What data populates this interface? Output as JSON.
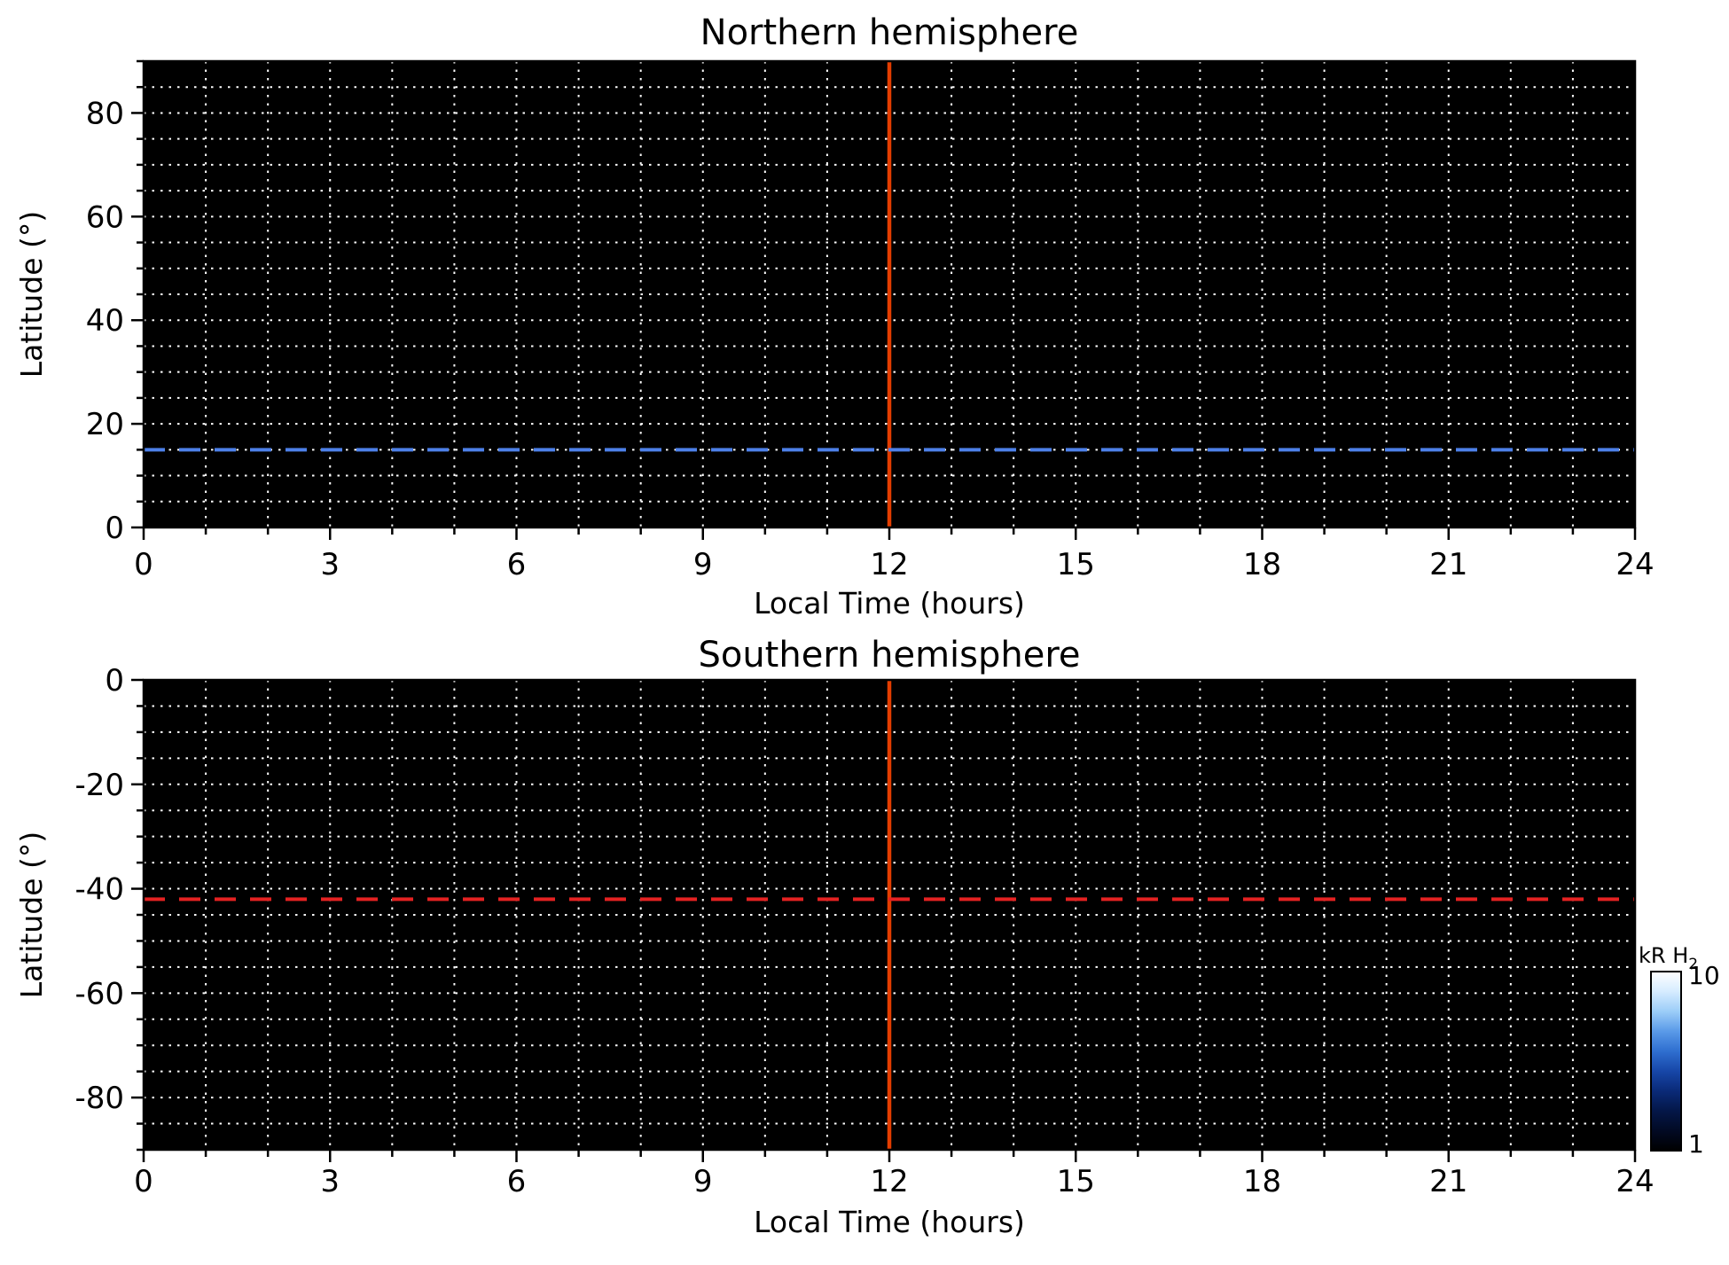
{
  "figure": {
    "background_color": "#ffffff"
  },
  "chart_data": [
    {
      "type": "heatmap",
      "title": "Northern hemisphere",
      "xlabel": "Local Time (hours)",
      "ylabel": "Latitude (°)",
      "xlim": [
        0,
        24
      ],
      "ylim": [
        0,
        90
      ],
      "xticks": [
        0,
        3,
        6,
        9,
        12,
        15,
        18,
        21,
        24
      ],
      "yticks": [
        0,
        20,
        40,
        60,
        80
      ],
      "x_minor_step": 1,
      "y_minor_step": 5,
      "grid": {
        "on": true,
        "x_step": 1,
        "y_step": 5,
        "line_style": "dotted",
        "color": "#ffffff"
      },
      "background_color": "#000000",
      "annotations": [
        {
          "kind": "vline",
          "x": 12,
          "style": "solid",
          "color": "#e33d00",
          "width": 4.5,
          "name": "vertical-line-12h-north"
        },
        {
          "kind": "hline",
          "y": 15,
          "style": "dashed",
          "color": "#4d80e8",
          "width": 4,
          "name": "dashed-latitude-line-north"
        }
      ]
    },
    {
      "type": "heatmap",
      "title": "Southern hemisphere",
      "xlabel": "Local Time (hours)",
      "ylabel": "Latitude (°)",
      "xlim": [
        0,
        24
      ],
      "ylim": [
        -90,
        0
      ],
      "xticks": [
        0,
        3,
        6,
        9,
        12,
        15,
        18,
        21,
        24
      ],
      "yticks": [
        0,
        -20,
        -40,
        -60,
        -80
      ],
      "x_minor_step": 1,
      "y_minor_step": 5,
      "grid": {
        "on": true,
        "x_step": 1,
        "y_step": 5,
        "line_style": "dotted",
        "color": "#ffffff"
      },
      "background_color": "#000000",
      "annotations": [
        {
          "kind": "vline",
          "x": 12,
          "style": "solid",
          "color": "#e33d00",
          "width": 4.5,
          "name": "vertical-line-12h-south"
        },
        {
          "kind": "hline",
          "y": -42,
          "style": "dashed",
          "color": "#e52222",
          "width": 4,
          "name": "dashed-latitude-line-south"
        }
      ]
    }
  ],
  "colorbar": {
    "label_main": "kR H",
    "label_sub": "2",
    "scale": "log",
    "min": 1,
    "max": 10,
    "tick_labels": [
      "10",
      "1"
    ],
    "gradient": [
      "#ffffff",
      "#d6ecff",
      "#9ccdf8",
      "#5a9ae8",
      "#2f6fd0",
      "#1747a8",
      "#0a2a78",
      "#041748",
      "#020a24",
      "#000000"
    ]
  }
}
